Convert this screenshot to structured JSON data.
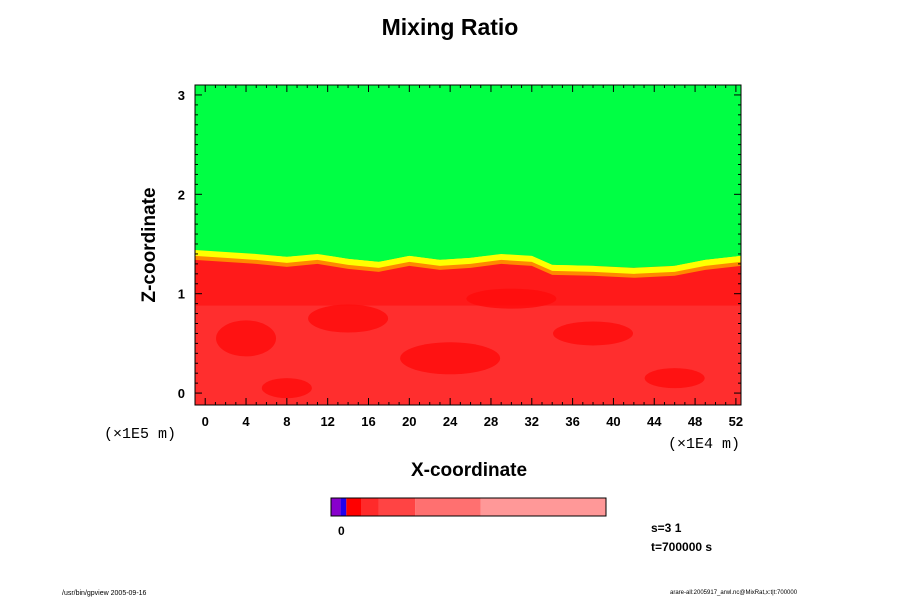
{
  "chart_data": {
    "type": "heatmap",
    "title": "Mixing Ratio",
    "xlabel": "X-coordinate",
    "ylabel": "Z-coordinate",
    "x_scale_note": "(×1E4 m)",
    "y_scale_note": "(×1E5 m)",
    "xlim": [
      -1,
      52.5
    ],
    "ylim": [
      -0.12,
      3.1
    ],
    "x_ticks": [
      0,
      4,
      8,
      12,
      16,
      20,
      24,
      28,
      32,
      36,
      40,
      44,
      48,
      52
    ],
    "y_ticks": [
      0,
      1,
      2,
      3
    ],
    "regions": [
      {
        "name_color": "#00ff44",
        "from_z": 1.38,
        "to_z": 3.1
      },
      {
        "name_color": "#ffff00",
        "from_z": 1.28,
        "to_z": 1.38
      },
      {
        "name_color": "#ff2222",
        "from_z": -0.12,
        "to_z": 1.28
      }
    ],
    "interface_z": [
      [
        -1,
        1.42
      ],
      [
        2,
        1.4
      ],
      [
        5,
        1.38
      ],
      [
        8,
        1.35
      ],
      [
        11,
        1.38
      ],
      [
        14,
        1.33
      ],
      [
        17,
        1.3
      ],
      [
        20,
        1.36
      ],
      [
        23,
        1.32
      ],
      [
        26,
        1.34
      ],
      [
        29,
        1.38
      ],
      [
        32,
        1.36
      ],
      [
        34,
        1.27
      ],
      [
        38,
        1.26
      ],
      [
        42,
        1.24
      ],
      [
        46,
        1.26
      ],
      [
        49,
        1.32
      ],
      [
        52.5,
        1.36
      ]
    ],
    "colorbar": {
      "label": "0",
      "segments": [
        {
          "color": "#8800cc",
          "width": 1
        },
        {
          "color": "#2200ee",
          "width": 0.6
        },
        {
          "color": "#ff0000",
          "width": 1.6
        },
        {
          "color": "#ff2a2a",
          "width": 1.8
        },
        {
          "color": "#ff4444",
          "width": 3.8
        },
        {
          "color": "#ff7070",
          "width": 6.8
        },
        {
          "color": "#ff9898",
          "width": 13.1
        }
      ]
    },
    "stats": {
      "s": "s=3 1",
      "t": "t=700000 s"
    }
  },
  "footer": {
    "left": "/usr/bin/gpview 2005-09-16",
    "right": "arare-all:2005917_arwl.nc@MixRat,x:t|t:700000"
  }
}
